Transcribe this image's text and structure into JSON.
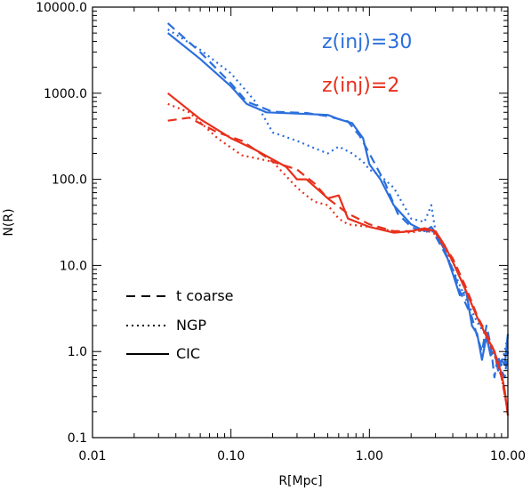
{
  "chart_data": {
    "type": "line",
    "title": "",
    "xlabel": "R[Mpc]",
    "ylabel": "N(R)",
    "xscale": "log",
    "yscale": "log",
    "xlim": [
      0.01,
      10.0
    ],
    "ylim": [
      0.1,
      10000.0
    ],
    "x_ticks": [
      0.01,
      0.1,
      1.0,
      10.0
    ],
    "x_tick_labels": [
      "0.01",
      "0.10",
      "1.00",
      "10.00"
    ],
    "y_ticks": [
      0.1,
      1.0,
      10.0,
      100.0,
      1000.0,
      10000.0
    ],
    "y_tick_labels": [
      "0.1",
      "1.0",
      "10.0",
      "100.0",
      "1000.0",
      "10000.0"
    ],
    "grid": false,
    "legend": {
      "placement": "bottom-left",
      "entries": [
        {
          "label": "t coarse",
          "linestyle": "dashed"
        },
        {
          "label": "NGP",
          "linestyle": "dotted"
        },
        {
          "label": "CIC",
          "linestyle": "solid"
        }
      ]
    },
    "annotations": [
      {
        "text": "z(inj)=30",
        "color": "#2b6fdc"
      },
      {
        "text": "z(inj)=2",
        "color": "#e8301c"
      }
    ],
    "colors": {
      "blue": "#2b6fdc",
      "red": "#e8301c"
    },
    "series": [
      {
        "group": "z(inj)=30",
        "linestyle": "solid",
        "color": "#2b6fdc",
        "x": [
          0.035,
          0.06,
          0.1,
          0.13,
          0.18,
          0.3,
          0.5,
          0.6,
          0.75,
          0.9,
          1.0,
          1.2,
          1.5,
          2.0,
          2.5,
          2.8,
          3.0,
          3.5,
          4.0,
          4.5,
          5.0,
          5.5,
          6.0,
          6.5,
          7.0,
          7.5,
          8.0,
          8.5,
          9.0,
          9.5,
          10.0
        ],
        "y": [
          5000,
          2500,
          1200,
          750,
          600,
          580,
          560,
          500,
          450,
          300,
          150,
          100,
          50,
          30,
          25,
          28,
          24,
          15,
          8,
          4.5,
          5,
          2.0,
          1.6,
          0.8,
          1.5,
          0.9,
          1.0,
          0.6,
          0.8,
          0.7,
          1.6
        ]
      },
      {
        "group": "z(inj)=30",
        "linestyle": "dashed",
        "color": "#2b6fdc",
        "x": [
          0.035,
          0.06,
          0.1,
          0.13,
          0.2,
          0.35,
          0.5,
          0.7,
          0.85,
          1.0,
          1.3,
          1.6,
          2.0,
          2.5,
          2.8,
          3.0,
          3.5,
          4.0,
          4.5,
          5.0,
          5.5,
          6.0,
          6.5,
          7.0,
          7.5,
          8.0,
          8.5,
          9.0,
          9.5,
          10.0
        ],
        "y": [
          6500,
          3000,
          1300,
          800,
          610,
          590,
          540,
          470,
          320,
          200,
          90,
          40,
          28,
          24,
          26,
          22,
          14,
          9,
          5,
          3.5,
          2.5,
          1.5,
          1.0,
          2.0,
          1.2,
          0.5,
          0.9,
          0.6,
          0.5,
          1.0
        ]
      },
      {
        "group": "z(inj)=30",
        "linestyle": "dotted",
        "color": "#2b6fdc",
        "x": [
          0.035,
          0.06,
          0.1,
          0.15,
          0.2,
          0.3,
          0.4,
          0.5,
          0.6,
          0.75,
          0.9,
          1.0,
          1.2,
          1.5,
          2.0,
          2.5,
          2.8,
          3.0,
          3.5,
          4.0,
          5.0,
          6.0,
          7.0,
          8.0,
          9.0,
          10.0
        ],
        "y": [
          5500,
          3200,
          1700,
          800,
          350,
          280,
          230,
          200,
          240,
          200,
          160,
          130,
          110,
          80,
          35,
          32,
          50,
          25,
          15,
          9,
          4,
          2.2,
          1.5,
          0.9,
          0.7,
          1.5
        ]
      },
      {
        "group": "z(inj)=2",
        "linestyle": "solid",
        "color": "#e8301c",
        "x": [
          0.035,
          0.06,
          0.1,
          0.15,
          0.25,
          0.3,
          0.35,
          0.45,
          0.5,
          0.6,
          0.7,
          1.0,
          1.5,
          2.0,
          2.5,
          3.0,
          3.5,
          4.0,
          5.0,
          6.0,
          7.0,
          8.0,
          9.0,
          9.5,
          10.0
        ],
        "y": [
          1000,
          500,
          300,
          220,
          140,
          100,
          100,
          70,
          60,
          65,
          35,
          28,
          24,
          25,
          27,
          25,
          17,
          11,
          5,
          2.5,
          1.5,
          1.0,
          0.55,
          0.35,
          0.18
        ]
      },
      {
        "group": "z(inj)=2",
        "linestyle": "dashed",
        "color": "#e8301c",
        "x": [
          0.035,
          0.05,
          0.08,
          0.12,
          0.2,
          0.3,
          0.4,
          0.5,
          0.7,
          1.0,
          1.5,
          2.0,
          2.5,
          3.0,
          4.0,
          5.0,
          6.0,
          7.0,
          8.0,
          9.0,
          10.0
        ],
        "y": [
          480,
          520,
          350,
          280,
          160,
          130,
          90,
          60,
          40,
          30,
          25,
          25,
          26,
          24,
          12,
          5.5,
          2.6,
          1.6,
          1.0,
          0.5,
          0.2
        ]
      },
      {
        "group": "z(inj)=2",
        "linestyle": "dotted",
        "color": "#e8301c",
        "x": [
          0.035,
          0.05,
          0.08,
          0.12,
          0.2,
          0.3,
          0.35,
          0.4,
          0.5,
          0.6,
          0.7,
          1.0,
          1.5,
          2.0,
          2.5,
          3.0,
          4.0,
          5.0,
          6.0,
          7.0,
          8.0,
          9.0,
          10.0
        ],
        "y": [
          750,
          600,
          300,
          190,
          160,
          80,
          65,
          55,
          50,
          35,
          30,
          28,
          25,
          24,
          26,
          23,
          11,
          5,
          2.5,
          1.5,
          0.9,
          0.5,
          0.2
        ]
      }
    ]
  }
}
